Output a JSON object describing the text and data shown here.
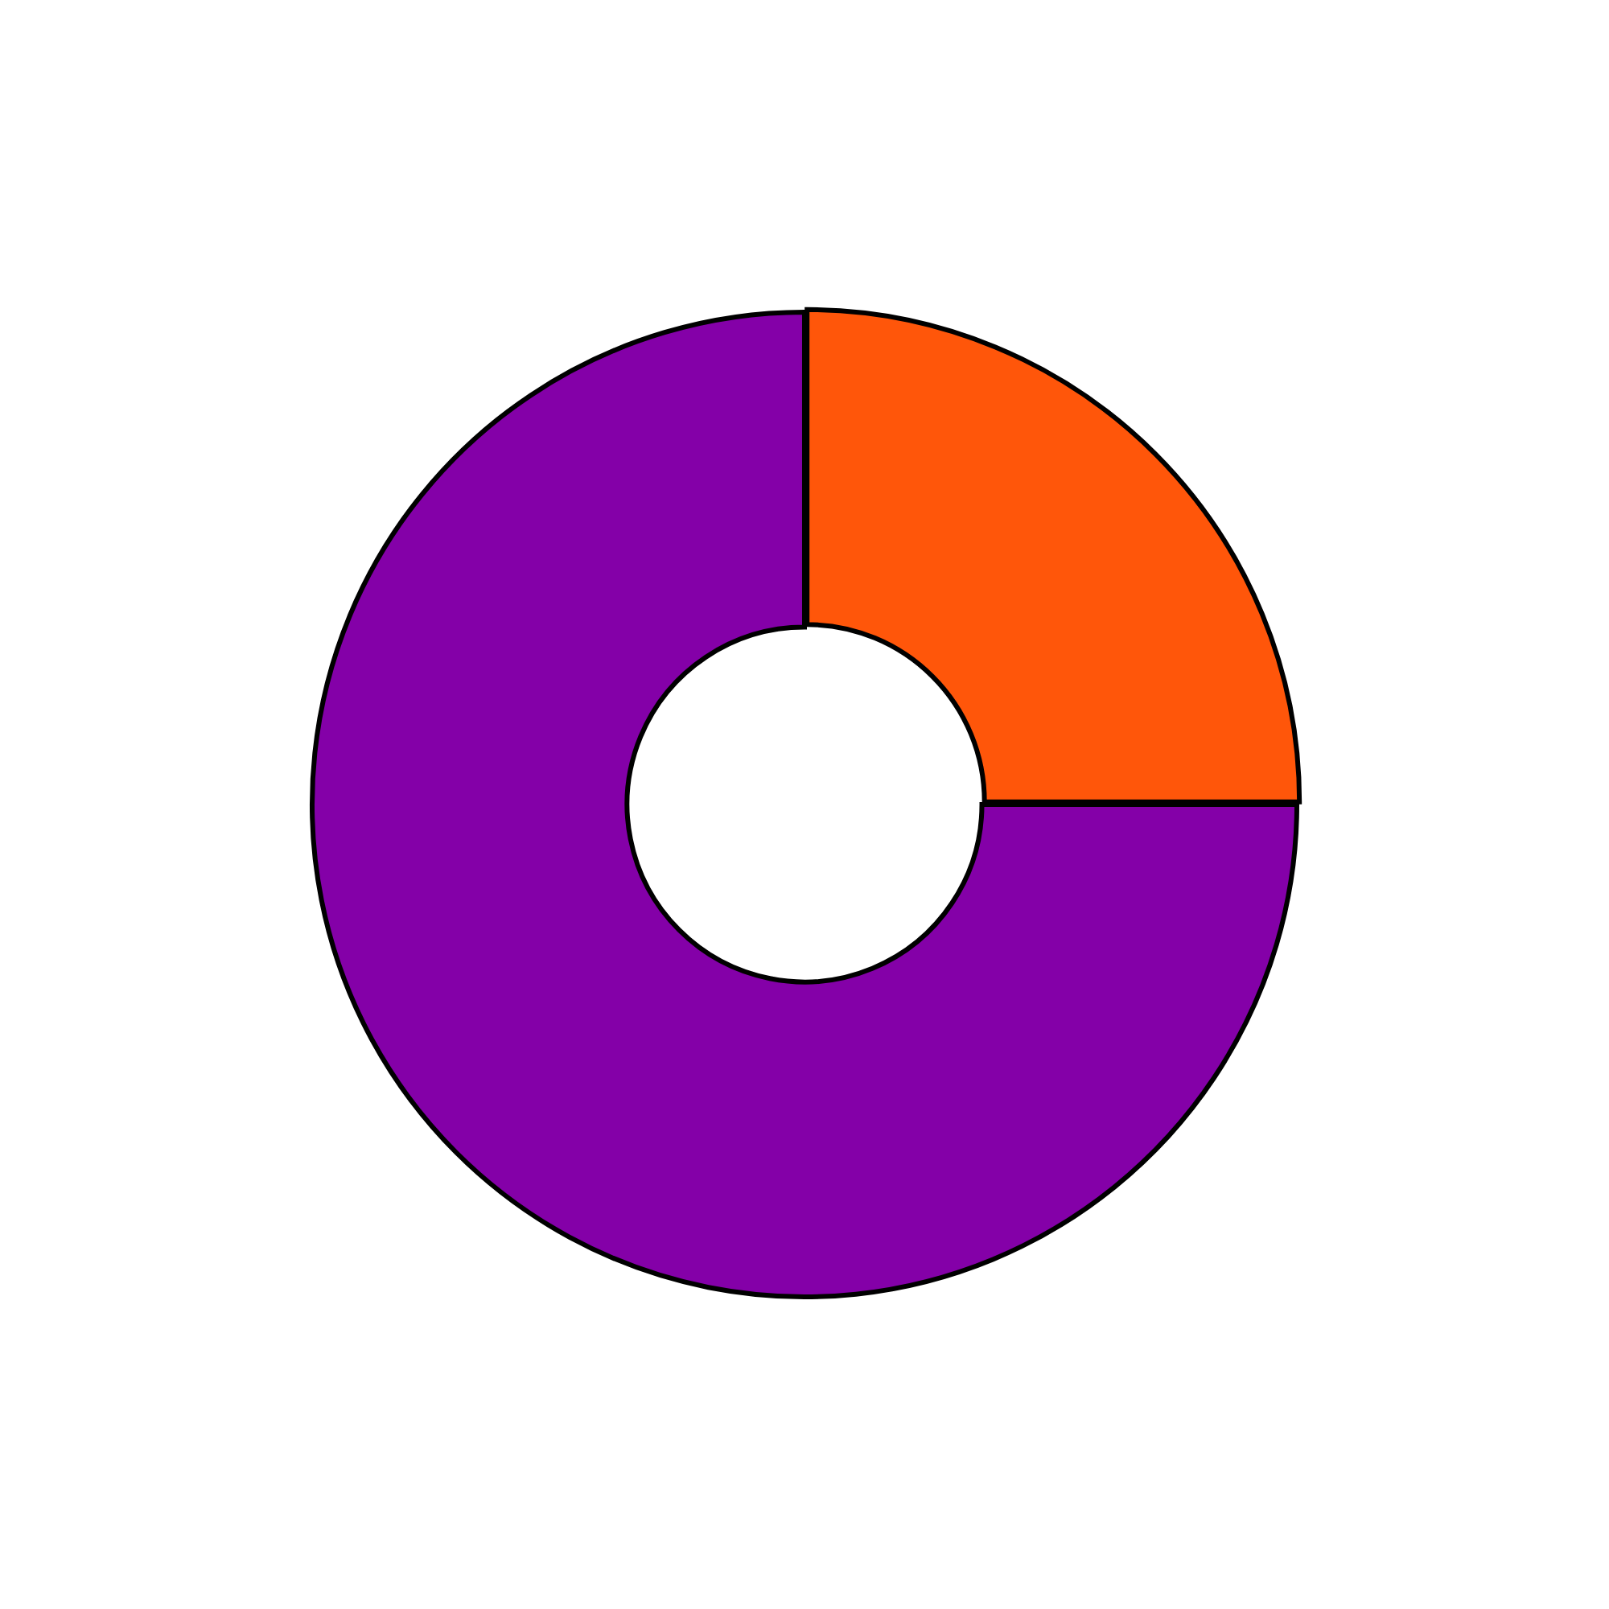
{
  "chart_data": {
    "type": "donut",
    "categories": [
      null,
      null
    ],
    "values": [
      25,
      75
    ],
    "colors": [
      "#ff560a",
      "#8400a8"
    ]
  }
}
